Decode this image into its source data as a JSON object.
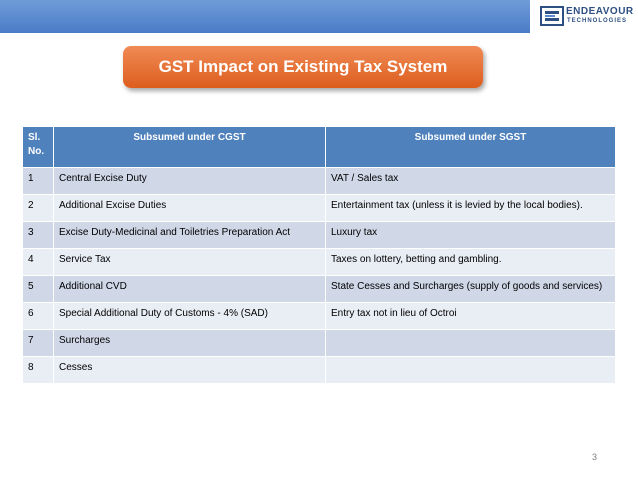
{
  "logo": {
    "name": "ENDEAVOUR",
    "sub": "TECHNOLOGIES"
  },
  "title": "GST Impact on Existing Tax System",
  "table": {
    "headers": {
      "sl": "Sl. No.",
      "cgst": "Subsumed under CGST",
      "sgst": "Subsumed under SGST"
    },
    "rows": [
      {
        "sl": "1",
        "cgst": "Central Excise Duty",
        "sgst": "VAT / Sales tax"
      },
      {
        "sl": "2",
        "cgst": "Additional Excise Duties",
        "sgst": "Entertainment tax (unless it is levied by the local bodies)."
      },
      {
        "sl": "3",
        "cgst": "Excise Duty-Medicinal and Toiletries Preparation Act",
        "sgst": "Luxury tax"
      },
      {
        "sl": "4",
        "cgst": "Service Tax",
        "sgst": "Taxes on lottery, betting and gambling."
      },
      {
        "sl": "5",
        "cgst": "Additional CVD",
        "sgst": "State Cesses and Surcharges (supply of goods and services)"
      },
      {
        "sl": "6",
        "cgst": "Special Additional Duty of Customs - 4% (SAD)",
        "sgst": "Entry tax not in lieu of Octroi"
      },
      {
        "sl": "7",
        "cgst": "Surcharges",
        "sgst": ""
      },
      {
        "sl": "8",
        "cgst": "Cesses",
        "sgst": ""
      }
    ]
  },
  "page_number": "3",
  "colors": {
    "header_bar": "#4a7cc6",
    "title_box": "#e46c2b",
    "table_header": "#4f81bd",
    "row_odd": "#d0d8e8",
    "row_even": "#e9edf4"
  }
}
